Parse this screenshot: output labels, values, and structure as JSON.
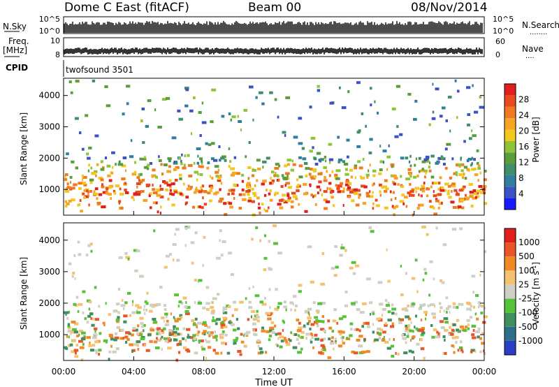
{
  "header": {
    "station": "Dome C East (fitACF)",
    "beam": "Beam 00",
    "date": "08/Nov/2014"
  },
  "panels": {
    "nsky": {
      "left_label": "N.Sky",
      "left_ticks": [
        "10^5",
        "10^0"
      ],
      "right_label": "N.Search",
      "right_ticks": [
        "10^5",
        "10^0"
      ],
      "right_dots": "........"
    },
    "freq": {
      "left_label_1": "Freq.",
      "left_label_2": "[MHz]",
      "left_ticks": [
        "10",
        "8"
      ],
      "right_label": "Nave",
      "right_ticks": [
        "60",
        "0"
      ],
      "right_dots": "...."
    },
    "cpid": {
      "label": "CPID",
      "value": "twofsound 3501"
    },
    "x_axis_title": "Time UT"
  },
  "chart_data": [
    {
      "type": "heatmap",
      "title": "",
      "quantity": "Power",
      "xlabel": "Time UT",
      "ylabel": "Slant Range [km]",
      "x_ticks": [
        "00:00",
        "04:00",
        "08:00",
        "12:00",
        "16:00",
        "20:00",
        "00:00"
      ],
      "x_range_hours": [
        0,
        24
      ],
      "y_ticks": [
        1000,
        2000,
        3000,
        4000
      ],
      "ylim": [
        180,
        4550
      ],
      "colorbar": {
        "label": "Power [dB]",
        "tick_labels": [
          "4",
          "8",
          "12",
          "16",
          "20",
          "24",
          "28"
        ],
        "range": [
          0,
          30
        ],
        "colors": [
          "#1a1aff",
          "#3b52c4",
          "#2f7fa0",
          "#3f8f6a",
          "#5a9e3c",
          "#8fc43a",
          "#f0c81e",
          "#f5a523",
          "#f07a22",
          "#e84a1e",
          "#e01e1e"
        ]
      },
      "bands": [
        {
          "name": "main",
          "range_km": [
            800,
            2050
          ],
          "density": 0.85
        },
        {
          "name": "lower",
          "range_km": [
            400,
            1200
          ],
          "density": 0.55
        },
        {
          "name": "high_echo_0800",
          "range_km": [
            2000,
            4450
          ],
          "density": 0.25
        },
        {
          "name": "high_echo_1330",
          "range_km": [
            2000,
            3300
          ],
          "density": 0.2
        }
      ]
    },
    {
      "type": "heatmap",
      "title": "",
      "quantity": "Velocity",
      "xlabel": "Time UT",
      "ylabel": "Slant Range [km]",
      "x_ticks": [
        "00:00",
        "04:00",
        "08:00",
        "12:00",
        "16:00",
        "20:00",
        "00:00"
      ],
      "x_range_hours": [
        0,
        24
      ],
      "y_ticks": [
        1000,
        2000,
        3000,
        4000
      ],
      "ylim": [
        180,
        4550
      ],
      "colorbar": {
        "label": "Velocity [m s^-1]",
        "tick_labels": [
          "1000",
          "500",
          "100",
          "25",
          "-25",
          "-100",
          "-500",
          "-1000"
        ],
        "colors": [
          "#2a3ec8",
          "#2e6f8c",
          "#3f8f5f",
          "#56c23a",
          "#cfcfc6",
          "#f4c270",
          "#f08a24",
          "#e8562a",
          "#e01e1e"
        ]
      }
    }
  ]
}
